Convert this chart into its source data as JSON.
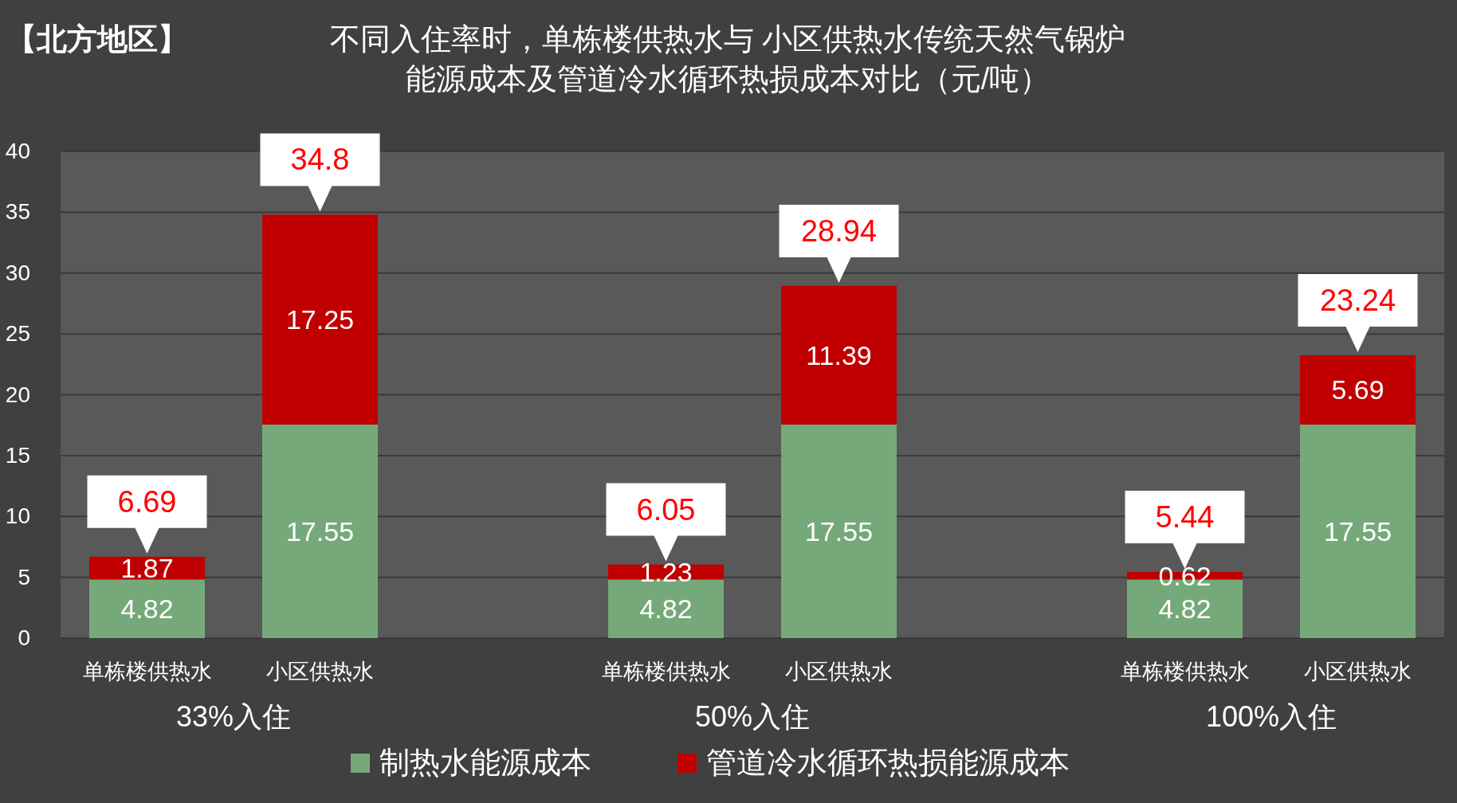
{
  "chart_data": {
    "type": "bar",
    "stacked": true,
    "title": "不同入住率时，单栋楼供热水与 小区供热水传统天然气锅炉",
    "subtitle": "能源成本及管道冷水循环热损成本对比（元/吨）",
    "categories": [
      "单栋楼供热水",
      "小区供热水",
      null,
      "单栋楼供热水",
      "小区供热水",
      null,
      "单栋楼供热水",
      "小区供热水"
    ],
    "series": [
      {
        "name": "制热水能源成本",
        "color": "#76a97a",
        "values": [
          4.82,
          17.55,
          null,
          4.82,
          17.55,
          null,
          4.82,
          17.55
        ]
      },
      {
        "name": "管道冷水循环热损能源成本",
        "color": "#c00000",
        "values": [
          1.87,
          17.25,
          null,
          1.23,
          11.39,
          null,
          0.62,
          5.69
        ]
      }
    ],
    "totals": [
      "6.69",
      "34.8",
      null,
      "6.05",
      "28.94",
      null,
      "5.44",
      "23.24"
    ],
    "annotations": [
      "【北方地区】",
      "33%入住",
      "50%入住",
      "100%入住"
    ],
    "data_labels": true,
    "ylim": [
      0,
      40
    ],
    "yticks": [
      0,
      5,
      10,
      15,
      20,
      25,
      30,
      35,
      40
    ],
    "grid": "y",
    "legend": "bottom"
  }
}
